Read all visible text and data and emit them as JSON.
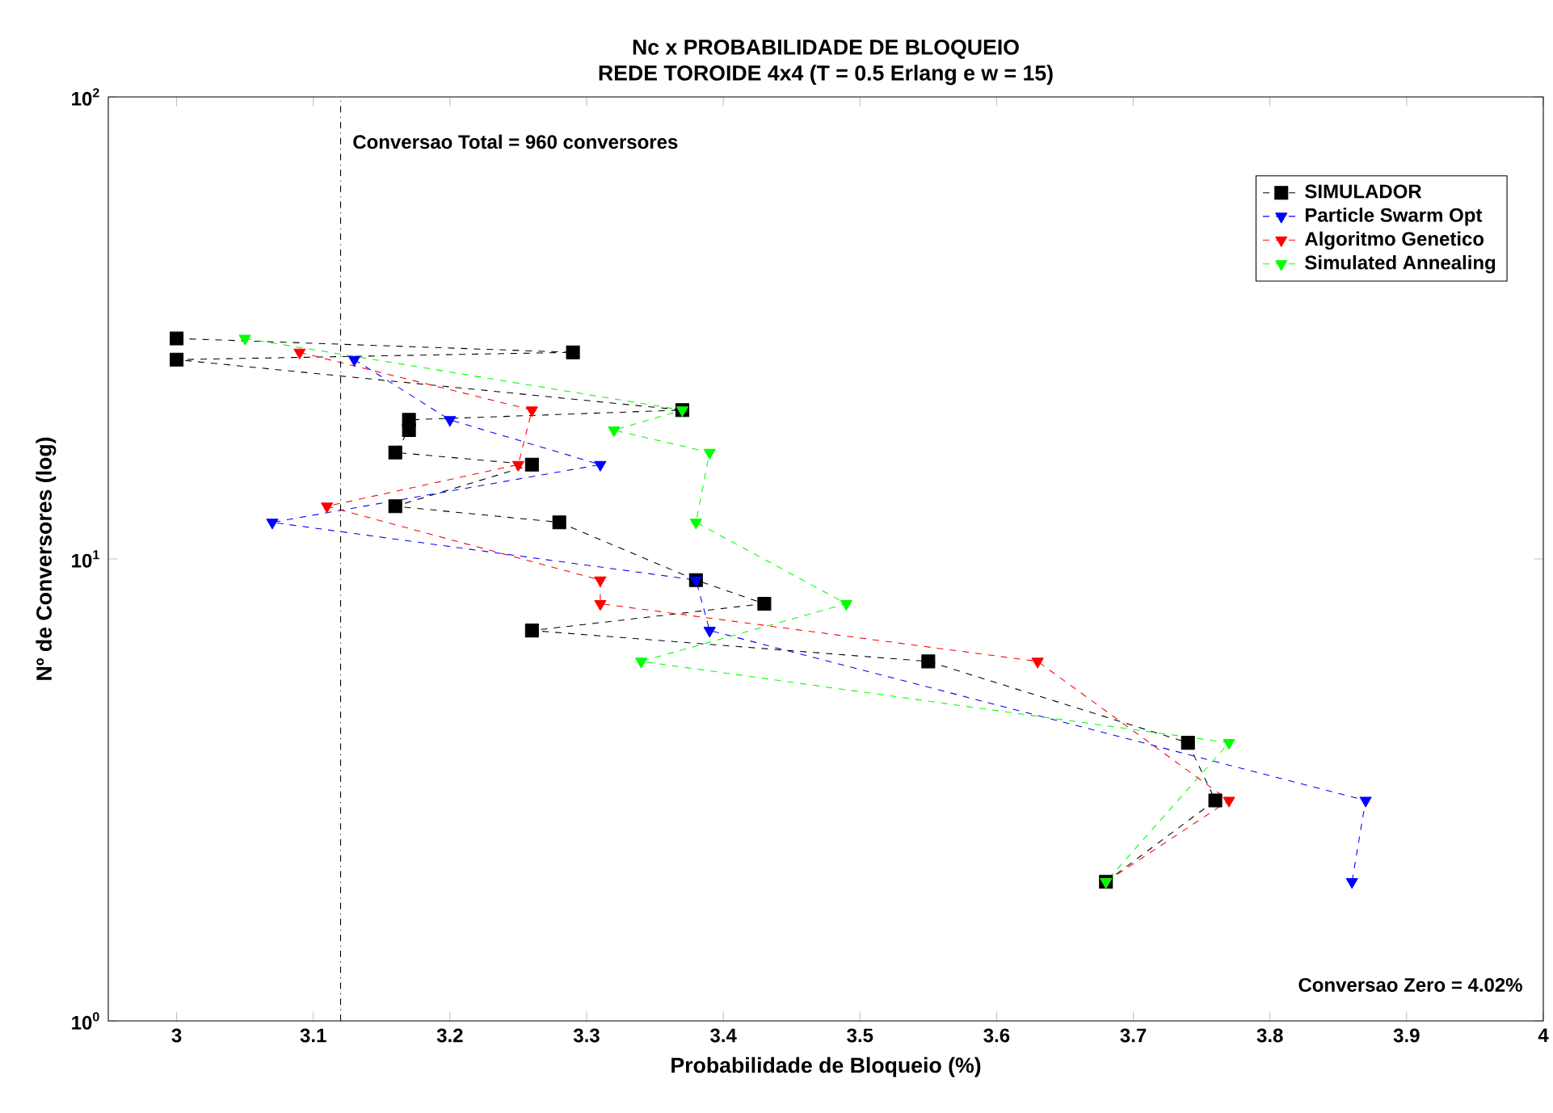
{
  "chart_data": {
    "type": "line",
    "title": "Nc x PROBABILIDADE DE BLOQUEIO",
    "subtitle": "REDE TOROIDE 4x4 (T = 0.5 Erlang e w = 15)",
    "xlabel": "Probabilidade de Bloqueio (%)",
    "ylabel": "Nº de Conversores (log)",
    "log": "y",
    "xlim": [
      2.95,
      4
    ],
    "ylim": [
      1,
      100
    ],
    "xticks": [
      3,
      3.1,
      3.2,
      3.3,
      3.4,
      3.5,
      3.6,
      3.7,
      3.8,
      3.9,
      4
    ],
    "yticks": [
      {
        "value": 1,
        "label": "10$^{0}$"
      },
      {
        "value": 10,
        "label": "10$^{1}$"
      },
      {
        "value": 100,
        "label": "10$^{2}$"
      }
    ],
    "legend": "top right",
    "line_style": "dashed",
    "series": [
      {
        "name": "SIMULADOR",
        "color": "#000000",
        "marker": "square",
        "x": [
          3.0,
          3.29,
          3.0,
          3.37,
          3.17,
          3.17,
          3.16,
          3.26,
          3.16,
          3.28,
          3.38,
          3.43,
          3.26,
          3.55,
          3.74,
          3.76,
          3.68
        ],
        "values": [
          30,
          28,
          27,
          21,
          20,
          19,
          17,
          16,
          13,
          12,
          9,
          8,
          7,
          6,
          4,
          3,
          2
        ]
      },
      {
        "name": "Particle Swarm Opt",
        "color": "#0000ff",
        "marker": "triangle",
        "x": [
          3.13,
          3.2,
          3.31,
          3.07,
          3.38,
          3.39,
          3.87,
          3.86
        ],
        "values": [
          27,
          20,
          16,
          12,
          9,
          7,
          3,
          2
        ]
      },
      {
        "name": "Algoritmo Genetico",
        "color": "#ff0000",
        "marker": "triangle",
        "x": [
          3.09,
          3.26,
          3.25,
          3.11,
          3.31,
          3.31,
          3.63,
          3.77,
          3.68
        ],
        "values": [
          28,
          21,
          16,
          13,
          9,
          8,
          6,
          3,
          2
        ]
      },
      {
        "name": "Simulated Annealing",
        "color": "#00ff00",
        "marker": "triangle",
        "x": [
          3.05,
          3.37,
          3.32,
          3.39,
          3.38,
          3.49,
          3.34,
          3.77,
          3.68
        ],
        "values": [
          30,
          21,
          19,
          17,
          12,
          8,
          6,
          4,
          2
        ]
      }
    ],
    "ref_lines": [
      {
        "axis": "x",
        "value": 3.12,
        "line_style": "dashdot",
        "color": "#000000"
      }
    ],
    "annotations": [
      {
        "text": "Conversao Total = 960 conversores",
        "x": 3.12,
        "y": 80
      },
      "Conversao Zero = 4.02%"
    ]
  }
}
